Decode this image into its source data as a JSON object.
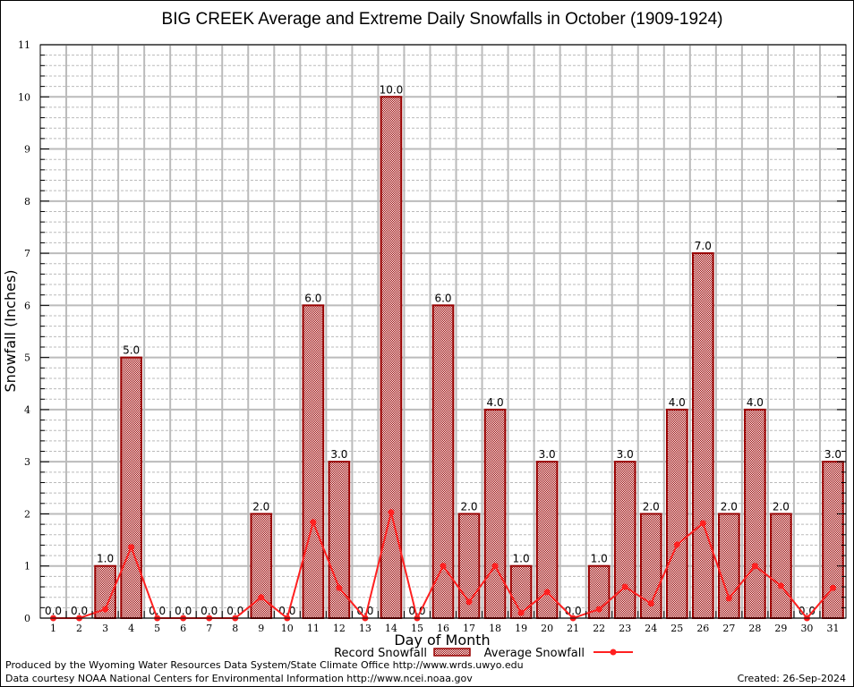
{
  "chart_data": {
    "type": "bar",
    "title": "BIG CREEK Average and Extreme Daily Snowfalls in October (1909-1924)",
    "xlabel": "Day of Month",
    "ylabel": "Snowfall (Inches)",
    "ylim": [
      0,
      11
    ],
    "yticks": [
      "0",
      "1",
      "2",
      "3",
      "4",
      "5",
      "6",
      "7",
      "8",
      "9",
      "10",
      "11"
    ],
    "categories": [
      "1",
      "2",
      "3",
      "4",
      "5",
      "6",
      "7",
      "8",
      "9",
      "10",
      "11",
      "12",
      "13",
      "14",
      "15",
      "16",
      "17",
      "18",
      "19",
      "20",
      "21",
      "22",
      "23",
      "24",
      "25",
      "26",
      "27",
      "28",
      "29",
      "30",
      "31"
    ],
    "grid": true,
    "series": [
      {
        "name": "Record Snowfall",
        "type": "bar",
        "color": "#990000",
        "values": [
          0.0,
          0.0,
          1.0,
          5.0,
          0.0,
          0.0,
          0.0,
          0.0,
          2.0,
          0.0,
          6.0,
          3.0,
          0.0,
          10.0,
          0.0,
          6.0,
          2.0,
          4.0,
          1.0,
          3.0,
          0.0,
          1.0,
          3.0,
          2.0,
          4.0,
          7.0,
          2.0,
          4.0,
          2.0,
          0.0,
          3.0
        ],
        "labels": [
          "0.0",
          "0.0",
          "1.0",
          "5.0",
          "0.0",
          "0.0",
          "0.0",
          "0.0",
          "2.0",
          "0.0",
          "6.0",
          "3.0",
          "0.0",
          "10.0",
          "0.0",
          "6.0",
          "2.0",
          "4.0",
          "1.0",
          "3.0",
          "0.0",
          "1.0",
          "3.0",
          "2.0",
          "4.0",
          "7.0",
          "2.0",
          "4.0",
          "2.0",
          "0.0",
          "3.0"
        ]
      },
      {
        "name": "Average Snowfall",
        "type": "line",
        "color": "#ff2020",
        "values": [
          0.0,
          0.0,
          0.17,
          1.36,
          0.0,
          0.0,
          0.0,
          0.0,
          0.4,
          0.0,
          1.84,
          0.58,
          0.0,
          2.03,
          0.0,
          1.0,
          0.31,
          1.0,
          0.1,
          0.5,
          0.0,
          0.17,
          0.6,
          0.28,
          1.41,
          1.82,
          0.38,
          1.0,
          0.62,
          0.0,
          0.58
        ]
      }
    ],
    "legend": {
      "position": "bottom",
      "record_label": "Record Snowfall",
      "average_label": "Average Snowfall"
    }
  },
  "footer": {
    "produced_by": "Produced by the Wyoming Water Resources Data System/State Climate Office http://www.wrds.uwyo.edu",
    "data_courtesy": "Data courtesy NOAA National Centers for Environmental Information http://www.ncei.noaa.gov",
    "created": "Created:  26-Sep-2024"
  }
}
